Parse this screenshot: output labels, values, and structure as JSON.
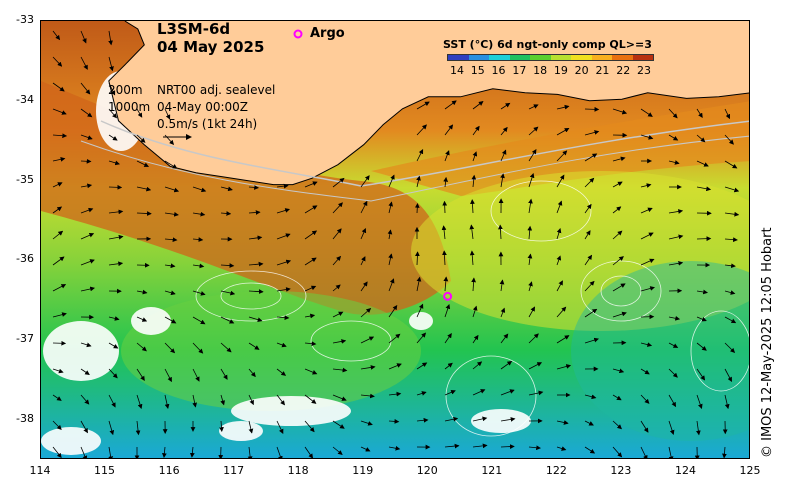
{
  "map": {
    "product_title": "L3SM-6d",
    "date": "04 May 2025",
    "argo_label": "Argo",
    "argo_glyph": "o",
    "argo_float": {
      "lon": 120.3,
      "lat": -36.45
    },
    "depth_contours": {
      "shallow": "200m",
      "deep": "1000m"
    },
    "sealevel_label": "NRT00 adj. sealevel",
    "sealevel_time": "04-May 00:00Z",
    "arrow_scale": "0.5m/s (1kt 24h)",
    "lon_range": [
      114,
      125
    ],
    "lat_range": [
      -38.5,
      -33
    ],
    "lon_ticks": [
      "114",
      "115",
      "116",
      "117",
      "118",
      "119",
      "120",
      "121",
      "122",
      "123",
      "124",
      "125"
    ],
    "lat_ticks": [
      "-33",
      "-34",
      "-35",
      "-36",
      "-37",
      "-38"
    ],
    "coastline_lonlat": [
      [
        114.0,
        -33.0
      ],
      [
        125.0,
        -33.0
      ],
      [
        125.0,
        -33.9
      ],
      [
        124.5,
        -33.95
      ],
      [
        124.0,
        -33.97
      ],
      [
        123.4,
        -33.9
      ],
      [
        123.0,
        -33.98
      ],
      [
        122.5,
        -34.0
      ],
      [
        122.0,
        -33.92
      ],
      [
        121.5,
        -33.9
      ],
      [
        121.0,
        -33.85
      ],
      [
        120.5,
        -33.95
      ],
      [
        120.0,
        -33.95
      ],
      [
        119.6,
        -34.1
      ],
      [
        119.3,
        -34.3
      ],
      [
        119.0,
        -34.55
      ],
      [
        118.6,
        -34.8
      ],
      [
        118.2,
        -34.97
      ],
      [
        117.9,
        -35.05
      ],
      [
        117.6,
        -35.05
      ],
      [
        117.2,
        -35.0
      ],
      [
        116.8,
        -34.95
      ],
      [
        116.4,
        -34.9
      ],
      [
        116.0,
        -34.82
      ],
      [
        115.6,
        -34.55
      ],
      [
        115.2,
        -34.25
      ],
      [
        115.05,
        -33.75
      ],
      [
        115.3,
        -33.55
      ],
      [
        115.6,
        -33.3
      ],
      [
        115.5,
        -33.1
      ],
      [
        115.3,
        -33.0
      ]
    ],
    "colors": {
      "land": "#ffcc99",
      "argo": "#ff00ff",
      "coast": "#000000",
      "contour": "#c8c8c8"
    }
  },
  "legend": {
    "title": "SST (°C) 6d ngt-only comp QL>=3",
    "ticks": [
      "14",
      "15",
      "16",
      "17",
      "18",
      "19",
      "20",
      "21",
      "22",
      "23"
    ],
    "colors": [
      "#2f3fc0",
      "#2a8fe0",
      "#1ecfd8",
      "#20c060",
      "#5ad030",
      "#b8e030",
      "#f0e020",
      "#f8b020",
      "#e87010",
      "#b83010"
    ]
  },
  "copyright": "© IMOS 12-May-2025 12:05 Hobart"
}
